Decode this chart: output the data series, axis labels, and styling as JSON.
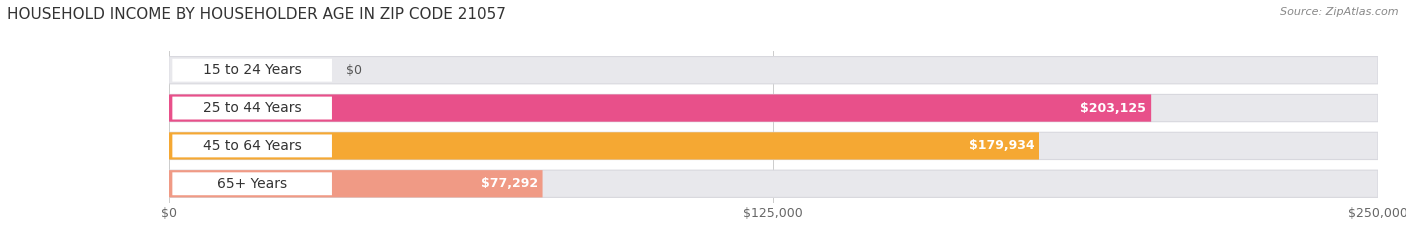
{
  "title": "HOUSEHOLD INCOME BY HOUSEHOLDER AGE IN ZIP CODE 21057",
  "source": "Source: ZipAtlas.com",
  "categories": [
    "15 to 24 Years",
    "25 to 44 Years",
    "45 to 64 Years",
    "65+ Years"
  ],
  "values": [
    0,
    203125,
    179934,
    77292
  ],
  "bar_colors": [
    "#adb5d8",
    "#e8508a",
    "#f5a833",
    "#f09a85"
  ],
  "bar_bg_color": "#e8e8ec",
  "xmax": 250000,
  "xticks": [
    0,
    125000,
    250000
  ],
  "xtick_labels": [
    "$0",
    "$125,000",
    "$250,000"
  ],
  "value_labels": [
    "$0",
    "$203,125",
    "$179,934",
    "$77,292"
  ],
  "background_color": "#ffffff",
  "title_fontsize": 11,
  "label_fontsize": 10,
  "value_fontsize": 9,
  "source_fontsize": 8
}
